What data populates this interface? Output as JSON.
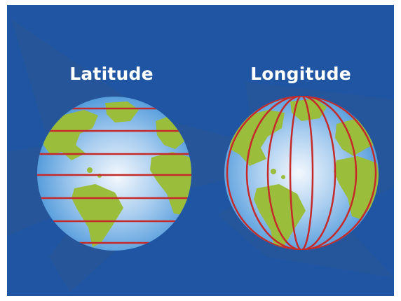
{
  "labels": {
    "latitude": "Latitude",
    "longitude": "Longitude"
  },
  "colors": {
    "background": "#1f55a2",
    "star": "#2a5795",
    "ocean_light": "#f4f8fd",
    "ocean_dark": "#3c8ed6",
    "land": "#9bbd3c",
    "grid_lines": "#c42a2a",
    "text": "#ffffff"
  },
  "globes": {
    "latitude": {
      "lines": 7
    },
    "longitude": {
      "lines": 7
    }
  }
}
